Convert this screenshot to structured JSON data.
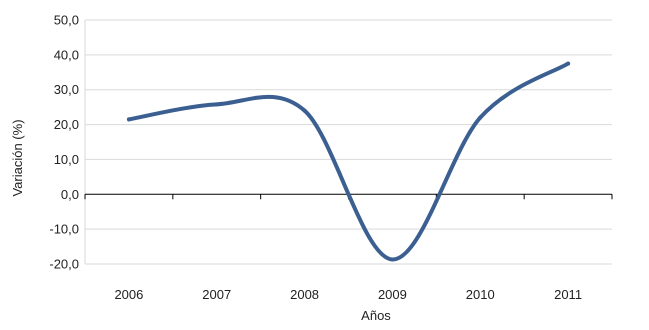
{
  "chart_data": {
    "type": "line",
    "categories": [
      "2006",
      "2007",
      "2008",
      "2009",
      "2010",
      "2011"
    ],
    "series": [
      {
        "values": [
          21.5,
          25.8,
          24.0,
          -18.7,
          22.0,
          37.5
        ],
        "color": "#3b5f91"
      }
    ],
    "xlabel": "Años",
    "ylabel": "Variación (%)",
    "ylim": [
      -20,
      50
    ],
    "ytick_step": 10,
    "ytick_labels": [
      "-20,0",
      "-10,0",
      "0,0",
      "10,0",
      "20,0",
      "30,0",
      "40,0",
      "50,0"
    ],
    "grid": "horizontal",
    "smooth": true,
    "legend": "none"
  }
}
